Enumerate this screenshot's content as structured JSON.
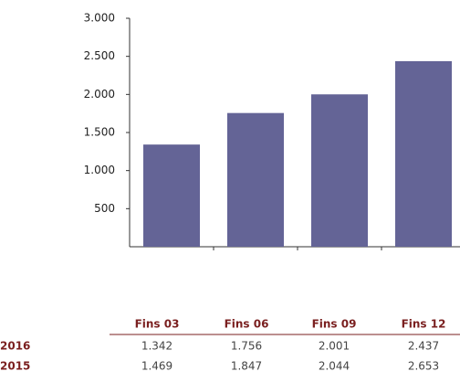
{
  "chart_data": {
    "type": "bar",
    "categories": [
      "Fins 03",
      "Fins 06",
      "Fins 09",
      "Fins 12"
    ],
    "values": [
      1342,
      1756,
      2001,
      2437
    ],
    "color": "#646496",
    "ylim": [
      0,
      3000
    ],
    "yticks": [
      {
        "value": 500,
        "label": "500"
      },
      {
        "value": 1000,
        "label": "1.000"
      },
      {
        "value": 1500,
        "label": "1.500"
      },
      {
        "value": 2000,
        "label": "2.000"
      },
      {
        "value": 2500,
        "label": "2.500"
      },
      {
        "value": 3000,
        "label": "3.000"
      }
    ],
    "grid": false
  },
  "table": {
    "header": [
      "Fins 03",
      "Fins 06",
      "Fins 09",
      "Fins 12"
    ],
    "rows": [
      [
        "2016",
        "1.342",
        "1.756",
        "2.001",
        "2.437"
      ],
      [
        "2015",
        "1.469",
        "1.847",
        "2.044",
        "2.653"
      ]
    ]
  }
}
